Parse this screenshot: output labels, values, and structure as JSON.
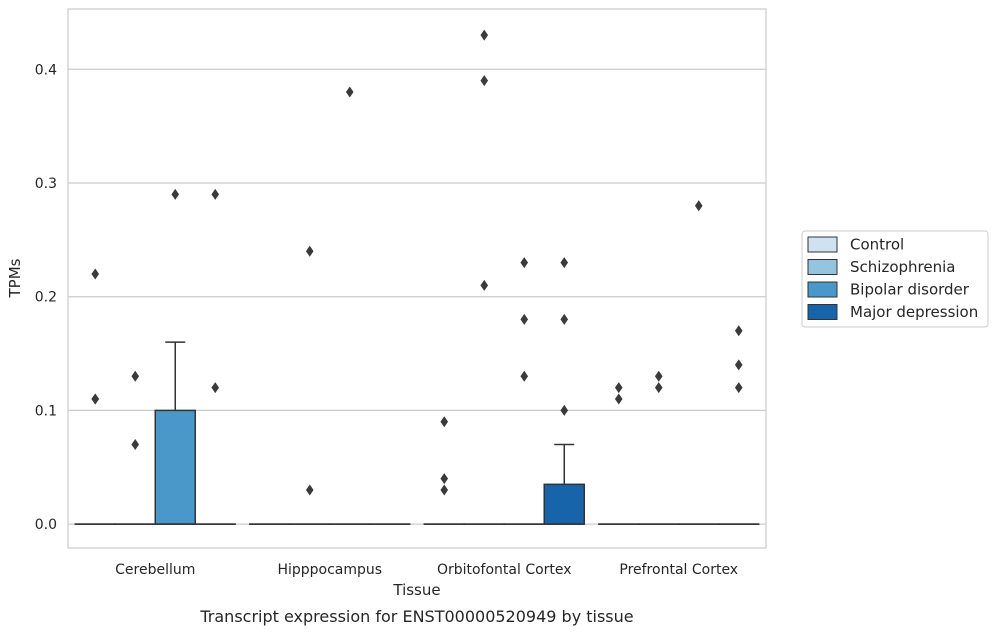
{
  "caption": "Transcript expression for ENST00000520949 by tissue",
  "chart_data": {
    "type": "boxplot",
    "xlabel": "Tissue",
    "ylabel": "TPMs",
    "ylim": [
      -0.021,
      0.453
    ],
    "yticks": [
      "0.0",
      "0.1",
      "0.2",
      "0.3",
      "0.4"
    ],
    "ytick_values": [
      0.0,
      0.1,
      0.2,
      0.3,
      0.4
    ],
    "grid": "horizontal",
    "legend_position": "right",
    "categories": [
      "Cerebellum",
      "Hipppocampus",
      "Orbitofontal Cortex",
      "Prefrontal Cortex"
    ],
    "series": [
      {
        "name": "Control",
        "color": "#d0e1f2",
        "boxes": [
          {
            "q1": 0,
            "median": 0,
            "q3": 0,
            "whisker_low": 0,
            "whisker_high": 0,
            "outliers": [
              0.22,
              0.11,
              0.11
            ]
          },
          {
            "q1": 0,
            "median": 0,
            "q3": 0,
            "whisker_low": 0,
            "whisker_high": 0,
            "outliers": []
          },
          {
            "q1": 0,
            "median": 0,
            "q3": 0,
            "whisker_low": 0,
            "whisker_high": 0,
            "outliers": [
              0.09,
              0.04,
              0.03
            ]
          },
          {
            "q1": 0,
            "median": 0,
            "q3": 0,
            "whisker_low": 0,
            "whisker_high": 0,
            "outliers": [
              0.12,
              0.11
            ]
          }
        ]
      },
      {
        "name": "Schizophrenia",
        "color": "#94c4df",
        "boxes": [
          {
            "q1": 0,
            "median": 0,
            "q3": 0,
            "whisker_low": 0,
            "whisker_high": 0,
            "outliers": [
              0.13,
              0.07
            ]
          },
          {
            "q1": 0,
            "median": 0,
            "q3": 0,
            "whisker_low": 0,
            "whisker_high": 0,
            "outliers": [
              0.24,
              0.03
            ]
          },
          {
            "q1": 0,
            "median": 0,
            "q3": 0,
            "whisker_low": 0,
            "whisker_high": 0,
            "outliers": [
              0.43,
              0.39,
              0.21
            ]
          },
          {
            "q1": 0,
            "median": 0,
            "q3": 0,
            "whisker_low": 0,
            "whisker_high": 0,
            "outliers": [
              0.13,
              0.12
            ]
          }
        ]
      },
      {
        "name": "Bipolar disorder",
        "color": "#4a98c9",
        "boxes": [
          {
            "q1": 0,
            "median": 0,
            "q3": 0.1,
            "whisker_low": 0,
            "whisker_high": 0.16,
            "outliers": [
              0.29
            ]
          },
          {
            "q1": 0,
            "median": 0,
            "q3": 0,
            "whisker_low": 0,
            "whisker_high": 0,
            "outliers": [
              0.38
            ]
          },
          {
            "q1": 0,
            "median": 0,
            "q3": 0,
            "whisker_low": 0,
            "whisker_high": 0,
            "outliers": [
              0.23,
              0.18,
              0.13
            ]
          },
          {
            "q1": 0,
            "median": 0,
            "q3": 0,
            "whisker_low": 0,
            "whisker_high": 0,
            "outliers": [
              0.28
            ]
          }
        ]
      },
      {
        "name": "Major depression",
        "color": "#1764ab",
        "boxes": [
          {
            "q1": 0,
            "median": 0,
            "q3": 0,
            "whisker_low": 0,
            "whisker_high": 0,
            "outliers": [
              0.29,
              0.12
            ]
          },
          {
            "q1": 0,
            "median": 0,
            "q3": 0,
            "whisker_low": 0,
            "whisker_high": 0,
            "outliers": []
          },
          {
            "q1": 0,
            "median": 0,
            "q3": 0.035,
            "whisker_low": 0,
            "whisker_high": 0.07,
            "outliers": [
              0.23,
              0.18,
              0.1
            ]
          },
          {
            "q1": 0,
            "median": 0,
            "q3": 0,
            "whisker_low": 0,
            "whisker_high": 0,
            "outliers": [
              0.17,
              0.14,
              0.12
            ]
          }
        ]
      }
    ]
  }
}
